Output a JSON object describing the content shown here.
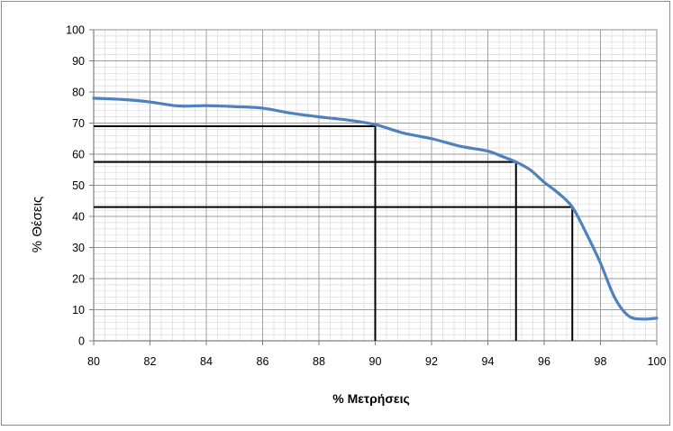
{
  "chart_data": {
    "type": "line",
    "title": "",
    "xlabel": "% Μετρήσεις",
    "ylabel": "% Θέσεις",
    "xlim": [
      80,
      100
    ],
    "ylim": [
      0,
      100
    ],
    "x_ticks": [
      80,
      82,
      84,
      86,
      88,
      90,
      92,
      94,
      96,
      98,
      100
    ],
    "y_ticks": [
      0,
      10,
      20,
      30,
      40,
      50,
      60,
      70,
      80,
      90,
      100
    ],
    "grid": true,
    "legend": "none",
    "series": [
      {
        "color": "#4f81bd",
        "x": [
          80,
          81,
          82,
          83,
          84,
          85,
          86,
          87,
          88,
          89,
          90,
          91,
          92,
          93,
          94,
          94.5,
          95,
          95.5,
          96,
          96.5,
          97,
          97.5,
          98,
          98.5,
          99,
          99.5,
          100
        ],
        "y": [
          78,
          77.6,
          76.8,
          75.5,
          75.6,
          75.3,
          74.8,
          73.2,
          72,
          71,
          69.5,
          66.8,
          65,
          62.6,
          61,
          59.3,
          57.5,
          55,
          51,
          47.5,
          43,
          34.5,
          25,
          14,
          8,
          7,
          7.3
        ]
      }
    ],
    "reference_lines": [
      {
        "x": 90,
        "y": 69
      },
      {
        "x": 95,
        "y": 57.5
      },
      {
        "x": 97,
        "y": 43
      }
    ]
  }
}
